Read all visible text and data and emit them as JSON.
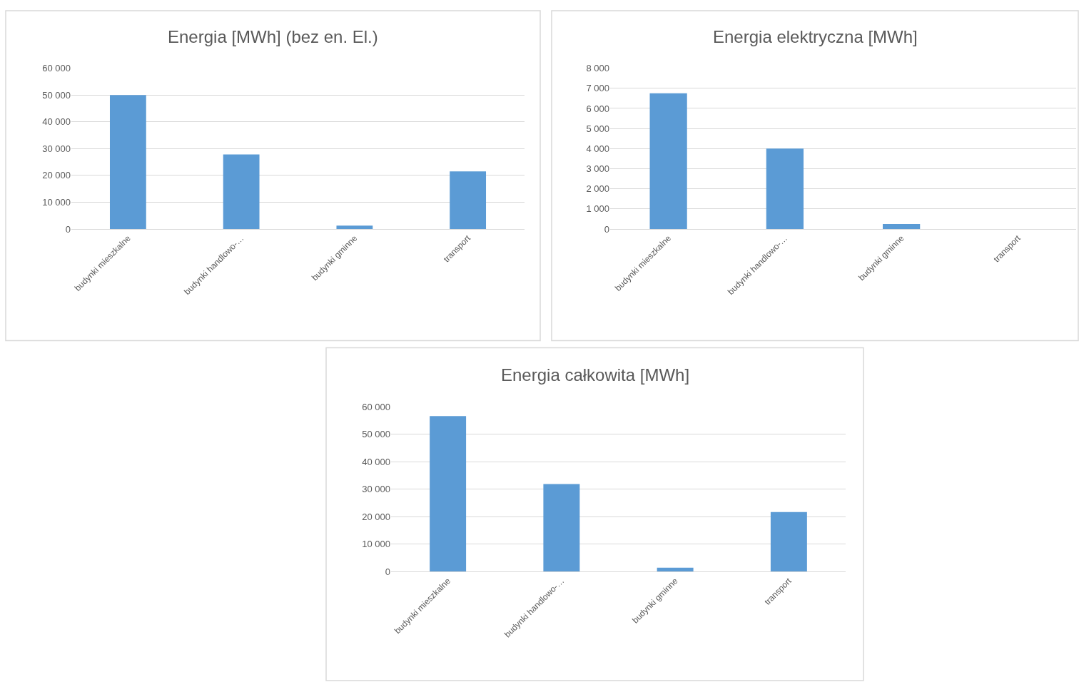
{
  "chart_data": [
    {
      "type": "bar",
      "title": "Energia [MWh] (bez en. El.)",
      "categories": [
        "budynki mieszkalne",
        "budynki handlowo-…",
        "budynki gminne",
        "transport"
      ],
      "values": [
        50000,
        27800,
        1300,
        21500
      ],
      "color": "#5b9bd5",
      "ylim": [
        0,
        60000
      ],
      "yticks": [
        {
          "value": 0,
          "label": "0"
        },
        {
          "value": 10000,
          "label": "10 000"
        },
        {
          "value": 20000,
          "label": "20 000"
        },
        {
          "value": 30000,
          "label": "30 000"
        },
        {
          "value": 40000,
          "label": "40 000"
        },
        {
          "value": 50000,
          "label": "50 000"
        },
        {
          "value": 60000,
          "label": "60 000"
        }
      ],
      "grid": "y",
      "legend": false
    },
    {
      "type": "bar",
      "title": "Energia elektryczna [MWh]",
      "categories": [
        "budynki mieszkalne",
        "budynki handlowo-…",
        "budynki gminne",
        "transport"
      ],
      "values": [
        6750,
        4000,
        250,
        0
      ],
      "color": "#5b9bd5",
      "ylim": [
        0,
        8000
      ],
      "yticks": [
        {
          "value": 0,
          "label": "0"
        },
        {
          "value": 1000,
          "label": "1 000"
        },
        {
          "value": 2000,
          "label": "2 000"
        },
        {
          "value": 3000,
          "label": "3 000"
        },
        {
          "value": 4000,
          "label": "4 000"
        },
        {
          "value": 5000,
          "label": "5 000"
        },
        {
          "value": 6000,
          "label": "6 000"
        },
        {
          "value": 7000,
          "label": "7 000"
        },
        {
          "value": 8000,
          "label": "8 000"
        }
      ],
      "grid": "y",
      "legend": false
    },
    {
      "type": "bar",
      "title": "Energia całkowita [MWh]",
      "categories": [
        "budynki mieszkalne",
        "budynki handlowo-…",
        "budynki gminne",
        "transport"
      ],
      "values": [
        56600,
        31900,
        1500,
        21700
      ],
      "color": "#5b9bd5",
      "ylim": [
        0,
        60000
      ],
      "yticks": [
        {
          "value": 0,
          "label": "0"
        },
        {
          "value": 10000,
          "label": "10 000"
        },
        {
          "value": 20000,
          "label": "20 000"
        },
        {
          "value": 30000,
          "label": "30 000"
        },
        {
          "value": 40000,
          "label": "40 000"
        },
        {
          "value": 50000,
          "label": "50 000"
        },
        {
          "value": 60000,
          "label": "60 000"
        }
      ],
      "grid": "y",
      "legend": false
    }
  ]
}
